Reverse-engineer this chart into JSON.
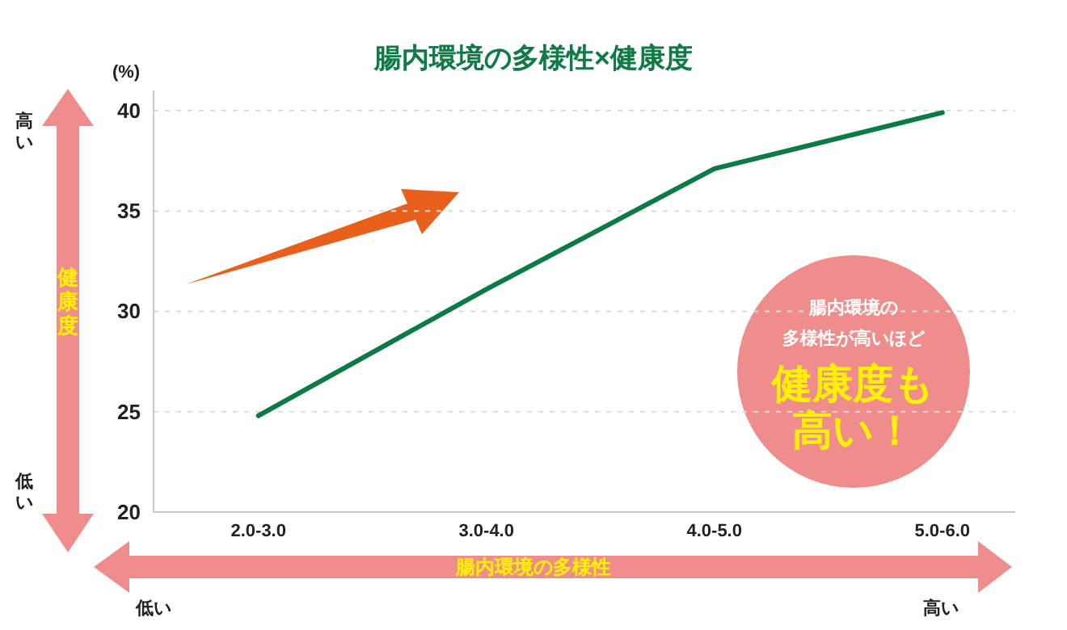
{
  "chart_data": {
    "type": "line",
    "title": "腸内環境の多様性×健康度",
    "xlabel": "腸内環境の多様性",
    "ylabel": "健康度",
    "categories": [
      "2.0-3.0",
      "3.0-4.0",
      "4.0-5.0",
      "5.0-6.0"
    ],
    "series": [
      {
        "color": "#0b7a45",
        "values": [
          24.8,
          31.1,
          37.1,
          39.9
        ]
      }
    ],
    "ylim": [
      20,
      41
    ],
    "yticks": [
      20,
      25,
      30,
      35,
      40
    ],
    "grid": "y",
    "marker": "none",
    "line_style": "solid",
    "annotations": [
      "(%)",
      "高い",
      "低い",
      "低い",
      "高い",
      "腸内環境の",
      "多様性が高いほど",
      "健康度も",
      "高い！"
    ]
  }
}
